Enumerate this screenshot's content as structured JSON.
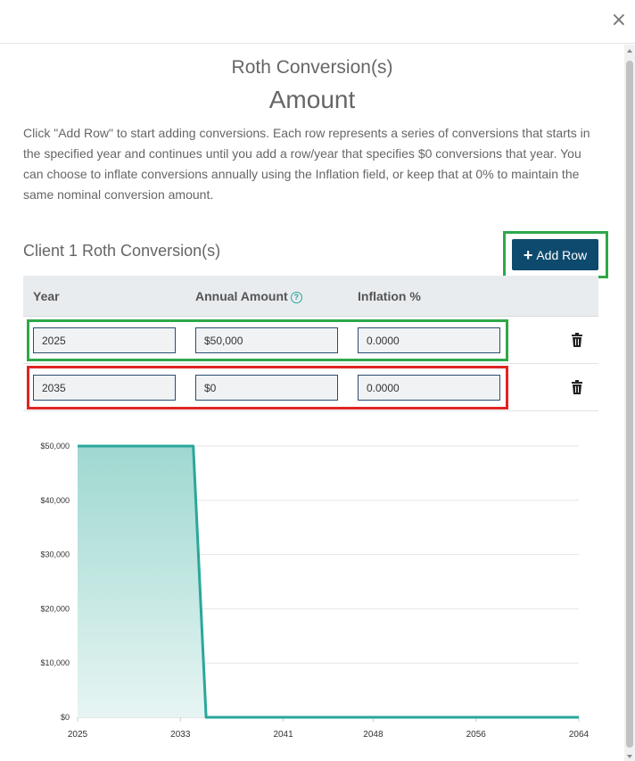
{
  "modal": {
    "close_glyph": "×"
  },
  "header": {
    "subtitle": "Roth Conversion(s)",
    "title": "Amount"
  },
  "description": "Click \"Add Row\" to start adding conversions. Each row represents a series of conversions that starts in the specified year and continues until you add a row/year that specifies $0 conversions that year. You can choose to inflate conversions annually using the Inflation field, or keep that at 0% to maintain the same nominal conversion amount.",
  "section": {
    "title": "Client 1 Roth Conversion(s)",
    "add_row_label": "Add Row",
    "add_row_icon": "plus-icon"
  },
  "table": {
    "columns": [
      "Year",
      "Annual Amount",
      "Inflation %"
    ],
    "help_icon": "question-circle-icon",
    "rows": [
      {
        "year": "2025",
        "amount": "$50,000",
        "inflation": "0.0000"
      },
      {
        "year": "2035",
        "amount": "$0",
        "inflation": "0.0000"
      }
    ],
    "delete_icon": "trash-icon"
  },
  "highlights": {
    "green": "#2ea84a",
    "red": "#e02424"
  },
  "colors": {
    "accent": "#0e4a6d",
    "line": "#2aa79b"
  },
  "chart_data": {
    "type": "area",
    "title": "",
    "x_ticks": [
      "2025",
      "2033",
      "2041",
      "2048",
      "2056",
      "2064"
    ],
    "y_ticks": [
      "$0",
      "$10,000",
      "$20,000",
      "$30,000",
      "$40,000",
      "$50,000"
    ],
    "x_range": [
      2025,
      2064
    ],
    "ylim": [
      0,
      50000
    ],
    "grid": true,
    "legend": "none",
    "points": [
      {
        "x": 2025,
        "y": 50000
      },
      {
        "x": 2034,
        "y": 50000
      },
      {
        "x": 2035,
        "y": 0
      },
      {
        "x": 2064,
        "y": 0
      }
    ]
  }
}
